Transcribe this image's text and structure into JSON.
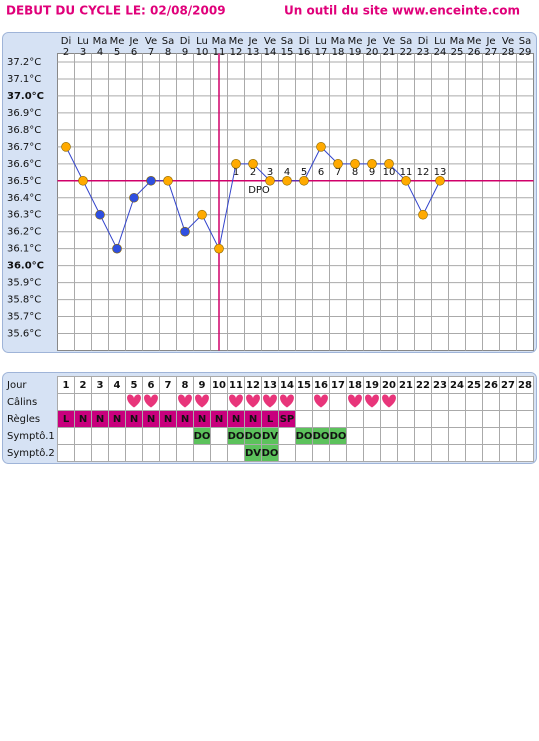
{
  "header": {
    "title": "DEBUT DU CYCLE LE: 02/08/2009",
    "site": "Un outil du site www.enceinte.com"
  },
  "chart_data": {
    "type": "line",
    "days": [
      "Di",
      "Lu",
      "Ma",
      "Me",
      "Je",
      "Ve",
      "Sa",
      "Di",
      "Lu",
      "Ma",
      "Me",
      "Je",
      "Ve",
      "Sa",
      "Di",
      "Lu",
      "Ma",
      "Me",
      "Je",
      "Ve",
      "Sa",
      "Di",
      "Lu",
      "Ma",
      "Me",
      "Je",
      "Ve",
      "Sa"
    ],
    "categories": [
      "2",
      "3",
      "4",
      "5",
      "6",
      "7",
      "8",
      "9",
      "10",
      "11",
      "12",
      "13",
      "14",
      "15",
      "16",
      "17",
      "18",
      "19",
      "20",
      "21",
      "22",
      "23",
      "24",
      "25",
      "26",
      "27",
      "28",
      "29"
    ],
    "category_colors": [
      "#e0007a",
      null,
      null,
      null,
      null,
      null,
      null,
      null,
      null,
      null,
      null,
      null,
      null,
      null,
      null,
      null,
      null,
      null,
      null,
      null,
      null,
      null,
      null,
      null,
      null,
      null,
      null,
      null
    ],
    "values": [
      36.7,
      36.5,
      36.3,
      36.1,
      36.4,
      36.5,
      36.5,
      36.2,
      36.3,
      36.1,
      36.6,
      36.6,
      36.5,
      36.5,
      36.5,
      36.7,
      36.6,
      36.6,
      36.6,
      36.6,
      36.5,
      36.3,
      36.5,
      null,
      null,
      null,
      null,
      null
    ],
    "colors": [
      "#ffaa00",
      "#ffaa00",
      "#2f4fe0",
      "#2f4fe0",
      "#2f4fe0",
      "#2f4fe0",
      "#ffaa00",
      "#2f4fe0",
      "#ffaa00",
      "#ffaa00",
      "#ffaa00",
      "#ffaa00",
      "#ffaa00",
      "#ffaa00",
      "#ffaa00",
      "#ffaa00",
      "#ffaa00",
      "#ffaa00",
      "#ffaa00",
      "#ffaa00",
      "#ffaa00",
      "#ffaa00",
      "#ffaa00",
      null,
      null,
      null,
      null,
      null
    ],
    "line_color": "#3344cc",
    "ylim": [
      35.5,
      37.25
    ],
    "yticks": [
      {
        "value": 37.2,
        "label": "37.2°C"
      },
      {
        "value": 37.1,
        "label": "37.1°C"
      },
      {
        "value": 37.0,
        "label": "37.0°C"
      },
      {
        "value": 36.9,
        "label": "36.9°C"
      },
      {
        "value": 36.8,
        "label": "36.8°C"
      },
      {
        "value": 36.7,
        "label": "36.7°C"
      },
      {
        "value": 36.6,
        "label": "36.6°C"
      },
      {
        "value": 36.5,
        "label": "36.5°C"
      },
      {
        "value": 36.4,
        "label": "36.4°C"
      },
      {
        "value": 36.3,
        "label": "36.3°C"
      },
      {
        "value": 36.2,
        "label": "36.2°C"
      },
      {
        "value": 36.1,
        "label": "36.1°C"
      },
      {
        "value": 36.0,
        "label": "36.0°C"
      },
      {
        "value": 35.9,
        "label": "35.9°C"
      },
      {
        "value": 35.8,
        "label": "35.8°C"
      },
      {
        "value": 35.7,
        "label": "35.7°C"
      },
      {
        "value": 35.6,
        "label": "35.6°C"
      }
    ],
    "ytick_colors": [
      null,
      null,
      "#e0007a",
      null,
      null,
      null,
      null,
      null,
      null,
      null,
      null,
      null,
      "#e0007a",
      null,
      null,
      null,
      null
    ],
    "grid": true,
    "coverline": 36.5,
    "ovulation_date": "11",
    "marker_color": "#d0006a",
    "dpo_labels": [
      "1",
      "2",
      "3",
      "4",
      "5",
      "6",
      "7",
      "8",
      "9",
      "10",
      "11",
      "12",
      "13"
    ],
    "dpo_label": "DPO"
  },
  "table": {
    "row_labels": [
      "Jour",
      "Câlins",
      "Règles",
      "Symptô.1",
      "Symptô.2"
    ],
    "days": [
      "1",
      "2",
      "3",
      "4",
      "5",
      "6",
      "7",
      "8",
      "9",
      "10",
      "11",
      "12",
      "13",
      "14",
      "15",
      "16",
      "17",
      "18",
      "19",
      "20",
      "21",
      "22",
      "23",
      "24",
      "25",
      "26",
      "27",
      "28"
    ],
    "day_colors": [
      null,
      null,
      null,
      null,
      null,
      null,
      null,
      "#3344cc",
      "#3344cc",
      "#e0007a",
      "#3344cc",
      "#3344cc",
      "#3344cc",
      null,
      null,
      null,
      null,
      null,
      null,
      null,
      null,
      null,
      null,
      null,
      null,
      null,
      null,
      null
    ],
    "calins": [
      null,
      null,
      null,
      null,
      true,
      true,
      null,
      true,
      true,
      null,
      true,
      true,
      true,
      true,
      null,
      true,
      null,
      true,
      true,
      true,
      null,
      null,
      null,
      null,
      null,
      null,
      null,
      null
    ],
    "regles": [
      "L",
      "N",
      "N",
      "N",
      "N",
      "N",
      "N",
      "N",
      "N",
      "N",
      "N",
      "N",
      "L",
      "SP",
      null,
      null,
      null,
      null,
      null,
      null,
      null,
      null,
      null,
      null,
      null,
      null,
      null,
      null
    ],
    "sympto1": [
      null,
      null,
      null,
      null,
      null,
      null,
      null,
      null,
      "DO",
      null,
      "DO",
      "DO",
      "DV",
      null,
      "DO",
      "DO",
      "DO",
      null,
      null,
      null,
      null,
      null,
      null,
      null,
      null,
      null,
      null,
      null
    ],
    "sympto2": [
      null,
      null,
      null,
      null,
      null,
      null,
      null,
      null,
      null,
      null,
      null,
      "DV",
      "DO",
      null,
      null,
      null,
      null,
      null,
      null,
      null,
      null,
      null,
      null,
      null,
      null,
      null,
      null,
      null
    ],
    "heart_color": "#e8357a",
    "regles_color": "#c8007d",
    "sympto_color": "#5cc25c"
  }
}
